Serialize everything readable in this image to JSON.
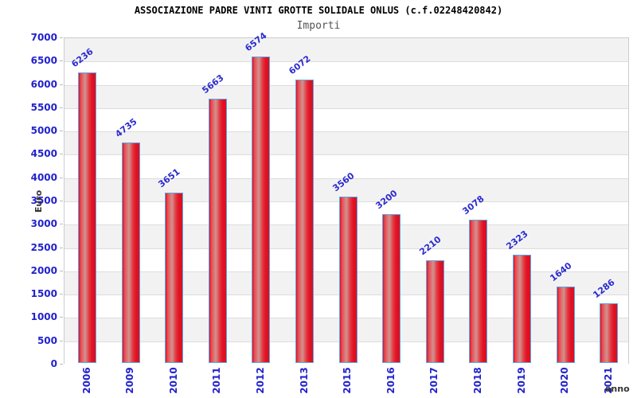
{
  "header": {
    "title": "ASSOCIAZIONE PADRE VINTI GROTTE SOLIDALE ONLUS (c.f.02248420842)",
    "subtitle": "Importi"
  },
  "chart_data": {
    "type": "bar",
    "title": "ASSOCIAZIONE PADRE VINTI GROTTE SOLIDALE ONLUS (c.f.02248420842)",
    "subtitle": "Importi",
    "categories": [
      "2006",
      "2009",
      "2010",
      "2011",
      "2012",
      "2013",
      "2015",
      "2016",
      "2017",
      "2018",
      "2019",
      "2020",
      "2021"
    ],
    "values": [
      6236,
      4735,
      3651,
      5663,
      6574,
      6072,
      3560,
      3200,
      2210,
      3078,
      2323,
      1640,
      1286
    ],
    "xlabel": "anno",
    "ylabel": "Euro",
    "ylim": [
      0,
      7000
    ],
    "ytick_step": 500,
    "grid": "horizontal gridlines every 500 with alternating gray/white bands",
    "legend_position": "none",
    "bar_value_labels_rotation_deg": -38,
    "x_tick_labels_rotation_deg": -90,
    "colors": {
      "bar_fill": "#e01223",
      "bar_fill_center": "#d1938e",
      "bar_border": "#5aa7e8",
      "y_tick_text": "#2222cc",
      "x_tick_text": "#2222cc",
      "value_label_text": "#2b2bd0",
      "band_gray": "#f2f2f2",
      "gridline": "#dddddd",
      "plot_border": "#cccccc",
      "title_text": "#000000",
      "subtitle_text": "#555555",
      "axis_label_text": "#333333"
    }
  }
}
